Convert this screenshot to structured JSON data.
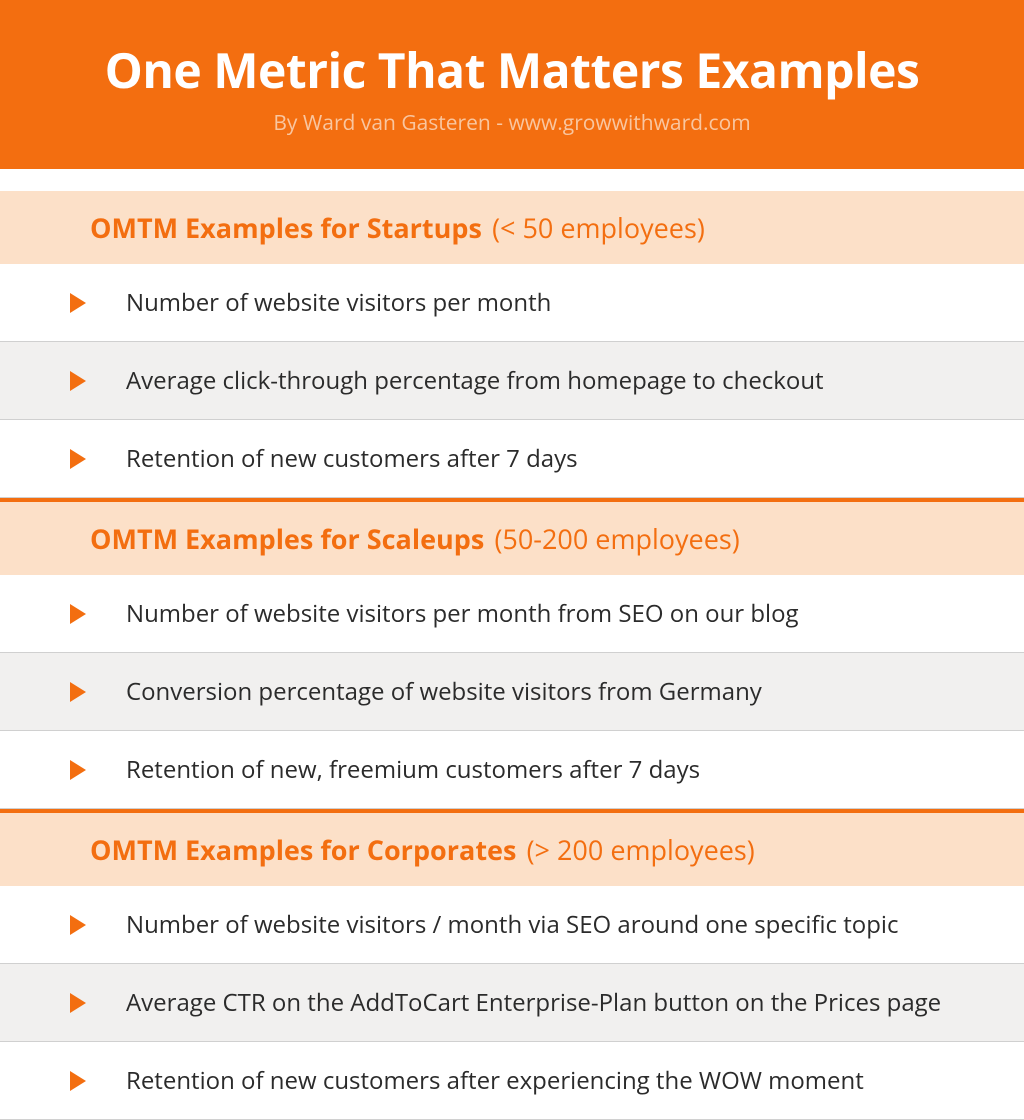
{
  "header": {
    "title": "One Metric That Matters Examples",
    "subtitle": "By Ward van Gasteren - www.growwithward.com"
  },
  "colors": {
    "brand": "#f36e10",
    "section_bg": "#fce0c8",
    "row_odd": "#ffffff",
    "row_even": "#f1f0ef",
    "text": "#2b2b2b",
    "subtitle": "#f9c6a0"
  },
  "sections": [
    {
      "title_strong": "OMTM Examples for Startups",
      "title_light": "(< 50 employees)",
      "items": [
        "Number of website visitors per month",
        "Average click-through percentage from homepage to checkout",
        "Retention of new customers after 7 days"
      ]
    },
    {
      "title_strong": "OMTM Examples for Scaleups",
      "title_light": "(50-200 employees)",
      "items": [
        "Number of website visitors per month from SEO on our blog",
        "Conversion percentage of website visitors from Germany",
        "Retention of new, freemium customers after 7 days"
      ]
    },
    {
      "title_strong": "OMTM Examples for Corporates",
      "title_light": "(> 200 employees)",
      "items": [
        "Number of website visitors / month via SEO around one specific topic",
        "Average CTR on the AddToCart Enterprise-Plan button on the Prices page",
        "Retention of new customers after experiencing the WOW moment"
      ]
    }
  ]
}
